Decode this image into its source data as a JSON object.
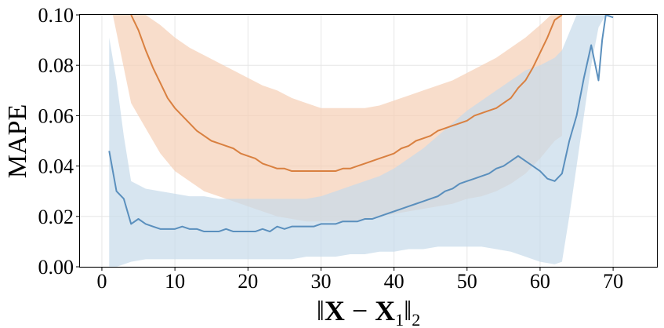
{
  "chart_data": {
    "type": "line",
    "title": "",
    "xlabel": "||X − X₁||₂",
    "xlabel_parts": {
      "open": "‖",
      "x": "X",
      "minus": " − ",
      "x1": "X",
      "sub1": "1",
      "close": "‖",
      "sub2": "2"
    },
    "ylabel": "MAPE",
    "xlim": [
      -3,
      76
    ],
    "ylim": [
      0,
      0.1
    ],
    "grid": true,
    "legend": "none",
    "xticks": [
      0,
      10,
      20,
      30,
      40,
      50,
      60,
      70
    ],
    "xtick_labels": [
      "0",
      "10",
      "20",
      "30",
      "40",
      "50",
      "60",
      "70"
    ],
    "yticks": [
      0,
      0.02,
      0.04,
      0.06,
      0.08,
      0.1
    ],
    "ytick_labels": [
      "0.00",
      "0.02",
      "0.04",
      "0.06",
      "0.08",
      "0.10"
    ],
    "series": [
      {
        "color": "#d98040",
        "band_color": "#f5cfb5",
        "points": [
          [
            4,
            0.1
          ],
          [
            5,
            0.094
          ],
          [
            6,
            0.086
          ],
          [
            7,
            0.079
          ],
          [
            8,
            0.073
          ],
          [
            9,
            0.067
          ],
          [
            10,
            0.063
          ],
          [
            11,
            0.06
          ],
          [
            12,
            0.057
          ],
          [
            13,
            0.054
          ],
          [
            14,
            0.052
          ],
          [
            15,
            0.05
          ],
          [
            16,
            0.049
          ],
          [
            17,
            0.048
          ],
          [
            18,
            0.047
          ],
          [
            19,
            0.045
          ],
          [
            20,
            0.044
          ],
          [
            21,
            0.043
          ],
          [
            22,
            0.041
          ],
          [
            23,
            0.04
          ],
          [
            24,
            0.039
          ],
          [
            25,
            0.039
          ],
          [
            26,
            0.038
          ],
          [
            27,
            0.038
          ],
          [
            28,
            0.038
          ],
          [
            29,
            0.038
          ],
          [
            30,
            0.038
          ],
          [
            31,
            0.038
          ],
          [
            32,
            0.038
          ],
          [
            33,
            0.039
          ],
          [
            34,
            0.039
          ],
          [
            35,
            0.04
          ],
          [
            36,
            0.041
          ],
          [
            37,
            0.042
          ],
          [
            38,
            0.043
          ],
          [
            39,
            0.044
          ],
          [
            40,
            0.045
          ],
          [
            41,
            0.047
          ],
          [
            42,
            0.048
          ],
          [
            43,
            0.05
          ],
          [
            44,
            0.051
          ],
          [
            45,
            0.052
          ],
          [
            46,
            0.054
          ],
          [
            47,
            0.055
          ],
          [
            48,
            0.056
          ],
          [
            49,
            0.057
          ],
          [
            50,
            0.058
          ],
          [
            51,
            0.06
          ],
          [
            52,
            0.061
          ],
          [
            53,
            0.062
          ],
          [
            54,
            0.063
          ],
          [
            55,
            0.065
          ],
          [
            56,
            0.067
          ],
          [
            57,
            0.071
          ],
          [
            58,
            0.074
          ],
          [
            59,
            0.079
          ],
          [
            60,
            0.085
          ],
          [
            61,
            0.091
          ],
          [
            62,
            0.098
          ],
          [
            63,
            0.1
          ]
        ],
        "band_lower": [
          [
            4,
            0.065
          ],
          [
            6,
            0.055
          ],
          [
            8,
            0.045
          ],
          [
            10,
            0.038
          ],
          [
            12,
            0.034
          ],
          [
            14,
            0.03
          ],
          [
            16,
            0.028
          ],
          [
            18,
            0.026
          ],
          [
            20,
            0.024
          ],
          [
            22,
            0.022
          ],
          [
            24,
            0.02
          ],
          [
            26,
            0.019
          ],
          [
            28,
            0.018
          ],
          [
            30,
            0.018
          ],
          [
            32,
            0.018
          ],
          [
            34,
            0.018
          ],
          [
            36,
            0.019
          ],
          [
            38,
            0.02
          ],
          [
            40,
            0.021
          ],
          [
            42,
            0.022
          ],
          [
            44,
            0.023
          ],
          [
            46,
            0.024
          ],
          [
            48,
            0.025
          ],
          [
            50,
            0.027
          ],
          [
            52,
            0.028
          ],
          [
            54,
            0.03
          ],
          [
            56,
            0.033
          ],
          [
            58,
            0.037
          ],
          [
            60,
            0.043
          ],
          [
            62,
            0.05
          ],
          [
            63,
            0.052
          ]
        ],
        "band_upper": [
          [
            1.5,
            0.1
          ],
          [
            4,
            0.1
          ],
          [
            6,
            0.1
          ],
          [
            8,
            0.096
          ],
          [
            10,
            0.091
          ],
          [
            12,
            0.087
          ],
          [
            14,
            0.084
          ],
          [
            16,
            0.081
          ],
          [
            18,
            0.078
          ],
          [
            20,
            0.075
          ],
          [
            22,
            0.072
          ],
          [
            24,
            0.07
          ],
          [
            26,
            0.067
          ],
          [
            28,
            0.065
          ],
          [
            30,
            0.063
          ],
          [
            32,
            0.063
          ],
          [
            34,
            0.063
          ],
          [
            36,
            0.063
          ],
          [
            38,
            0.064
          ],
          [
            40,
            0.066
          ],
          [
            42,
            0.068
          ],
          [
            44,
            0.07
          ],
          [
            46,
            0.072
          ],
          [
            48,
            0.074
          ],
          [
            50,
            0.077
          ],
          [
            52,
            0.08
          ],
          [
            54,
            0.083
          ],
          [
            56,
            0.087
          ],
          [
            58,
            0.091
          ],
          [
            60,
            0.096
          ],
          [
            61.5,
            0.1
          ],
          [
            63,
            0.1
          ]
        ]
      },
      {
        "color": "#5a8fbd",
        "band_color": "#c6daea",
        "points": [
          [
            1,
            0.046
          ],
          [
            2,
            0.03
          ],
          [
            3,
            0.027
          ],
          [
            4,
            0.017
          ],
          [
            5,
            0.019
          ],
          [
            6,
            0.017
          ],
          [
            7,
            0.016
          ],
          [
            8,
            0.015
          ],
          [
            9,
            0.015
          ],
          [
            10,
            0.015
          ],
          [
            11,
            0.016
          ],
          [
            12,
            0.015
          ],
          [
            13,
            0.015
          ],
          [
            14,
            0.014
          ],
          [
            15,
            0.014
          ],
          [
            16,
            0.014
          ],
          [
            17,
            0.015
          ],
          [
            18,
            0.014
          ],
          [
            19,
            0.014
          ],
          [
            20,
            0.014
          ],
          [
            21,
            0.014
          ],
          [
            22,
            0.015
          ],
          [
            23,
            0.014
          ],
          [
            24,
            0.016
          ],
          [
            25,
            0.015
          ],
          [
            26,
            0.016
          ],
          [
            27,
            0.016
          ],
          [
            28,
            0.016
          ],
          [
            29,
            0.016
          ],
          [
            30,
            0.017
          ],
          [
            31,
            0.017
          ],
          [
            32,
            0.017
          ],
          [
            33,
            0.018
          ],
          [
            34,
            0.018
          ],
          [
            35,
            0.018
          ],
          [
            36,
            0.019
          ],
          [
            37,
            0.019
          ],
          [
            38,
            0.02
          ],
          [
            39,
            0.021
          ],
          [
            40,
            0.022
          ],
          [
            41,
            0.023
          ],
          [
            42,
            0.024
          ],
          [
            43,
            0.025
          ],
          [
            44,
            0.026
          ],
          [
            45,
            0.027
          ],
          [
            46,
            0.028
          ],
          [
            47,
            0.03
          ],
          [
            48,
            0.031
          ],
          [
            49,
            0.033
          ],
          [
            50,
            0.034
          ],
          [
            51,
            0.035
          ],
          [
            52,
            0.036
          ],
          [
            53,
            0.037
          ],
          [
            54,
            0.039
          ],
          [
            55,
            0.04
          ],
          [
            56,
            0.042
          ],
          [
            57,
            0.044
          ],
          [
            58,
            0.042
          ],
          [
            59,
            0.04
          ],
          [
            60,
            0.038
          ],
          [
            61,
            0.035
          ],
          [
            62,
            0.034
          ],
          [
            63,
            0.037
          ],
          [
            64,
            0.05
          ],
          [
            65,
            0.06
          ],
          [
            66,
            0.075
          ],
          [
            67,
            0.088
          ],
          [
            68,
            0.074
          ],
          [
            68.5,
            0.09
          ],
          [
            69,
            0.1
          ],
          [
            70,
            0.099
          ]
        ],
        "band_lower": [
          [
            1,
            0.0
          ],
          [
            2,
            0.0
          ],
          [
            4,
            0.002
          ],
          [
            6,
            0.003
          ],
          [
            8,
            0.003
          ],
          [
            10,
            0.003
          ],
          [
            12,
            0.003
          ],
          [
            14,
            0.003
          ],
          [
            16,
            0.003
          ],
          [
            18,
            0.003
          ],
          [
            20,
            0.003
          ],
          [
            22,
            0.003
          ],
          [
            24,
            0.003
          ],
          [
            26,
            0.003
          ],
          [
            28,
            0.004
          ],
          [
            30,
            0.004
          ],
          [
            32,
            0.004
          ],
          [
            34,
            0.005
          ],
          [
            36,
            0.005
          ],
          [
            38,
            0.006
          ],
          [
            40,
            0.006
          ],
          [
            42,
            0.007
          ],
          [
            44,
            0.007
          ],
          [
            46,
            0.008
          ],
          [
            48,
            0.008
          ],
          [
            50,
            0.008
          ],
          [
            52,
            0.008
          ],
          [
            54,
            0.007
          ],
          [
            56,
            0.006
          ],
          [
            58,
            0.004
          ],
          [
            60,
            0.002
          ],
          [
            62,
            0.001
          ],
          [
            63,
            0.002
          ],
          [
            64,
            0.02
          ],
          [
            65,
            0.04
          ],
          [
            66,
            0.06
          ],
          [
            67,
            0.08
          ],
          [
            68,
            0.095
          ],
          [
            69,
            0.1
          ]
        ],
        "band_upper": [
          [
            1,
            0.091
          ],
          [
            2,
            0.074
          ],
          [
            3,
            0.052
          ],
          [
            4,
            0.034
          ],
          [
            6,
            0.031
          ],
          [
            8,
            0.03
          ],
          [
            10,
            0.029
          ],
          [
            12,
            0.028
          ],
          [
            14,
            0.028
          ],
          [
            16,
            0.027
          ],
          [
            18,
            0.027
          ],
          [
            20,
            0.027
          ],
          [
            22,
            0.027
          ],
          [
            24,
            0.027
          ],
          [
            26,
            0.027
          ],
          [
            28,
            0.027
          ],
          [
            30,
            0.028
          ],
          [
            32,
            0.03
          ],
          [
            34,
            0.032
          ],
          [
            36,
            0.034
          ],
          [
            38,
            0.036
          ],
          [
            40,
            0.039
          ],
          [
            42,
            0.043
          ],
          [
            44,
            0.047
          ],
          [
            46,
            0.052
          ],
          [
            48,
            0.057
          ],
          [
            50,
            0.062
          ],
          [
            52,
            0.066
          ],
          [
            54,
            0.07
          ],
          [
            56,
            0.074
          ],
          [
            58,
            0.078
          ],
          [
            60,
            0.08
          ],
          [
            62,
            0.083
          ],
          [
            63,
            0.086
          ],
          [
            64,
            0.093
          ],
          [
            65,
            0.1
          ],
          [
            70,
            0.1
          ]
        ]
      }
    ]
  }
}
